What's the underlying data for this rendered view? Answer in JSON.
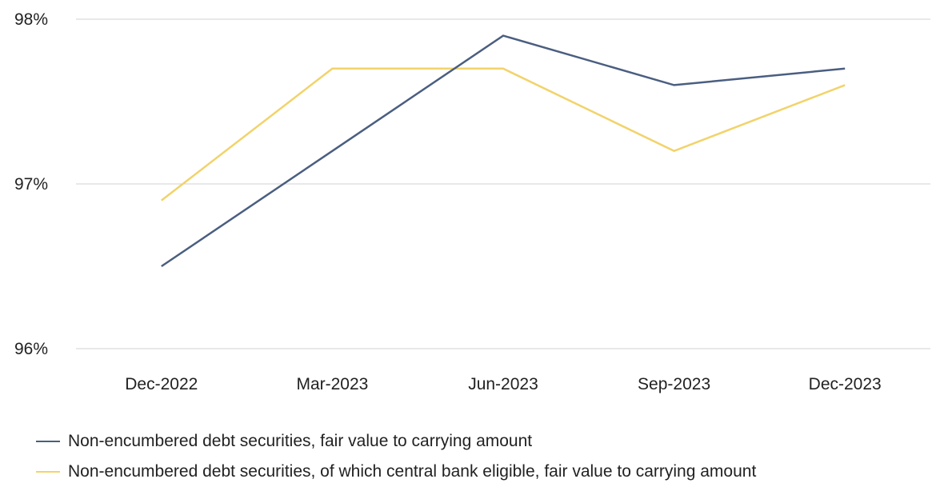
{
  "chart_data": {
    "type": "line",
    "categories": [
      "Dec-2022",
      "Mar-2023",
      "Jun-2023",
      "Sep-2023",
      "Dec-2023"
    ],
    "series": [
      {
        "name": "Non-encumbered debt securities, fair value to carrying amount",
        "color": "#4a5e80",
        "values": [
          96.5,
          97.2,
          97.9,
          97.6,
          97.7
        ]
      },
      {
        "name": "Non-encumbered debt securities, of which central bank eligible, fair value to carrying amount",
        "color": "#f2d36b",
        "values": [
          96.9,
          97.7,
          97.7,
          97.2,
          97.6
        ]
      }
    ],
    "yticks": [
      "96%",
      "97%",
      "98%"
    ],
    "ylim": [
      96,
      98
    ],
    "grid": true,
    "legend_position": "bottom-left"
  }
}
